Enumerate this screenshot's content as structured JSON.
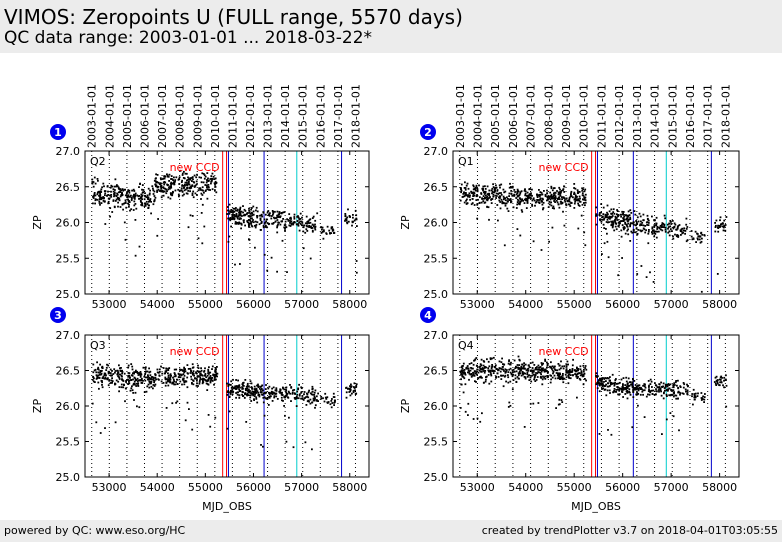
{
  "header": {
    "title": "VIMOS: Zeropoints U (FULL range, 5570 days)",
    "subtitle": "QC data range: 2003-01-01 ... 2018-03-22*"
  },
  "footer": {
    "left": "powered by QC: www.eso.org/HC",
    "right": "created by trendPlotter v3.7 on 2018-04-01T03:05:55"
  },
  "colors": {
    "background": "#ffffff",
    "band": "#ececec",
    "points": "#000000",
    "new_ccd": "#ff0000",
    "blue_line": "#0000cc",
    "cyan_line": "#00cccc",
    "badge": "#0000ee"
  },
  "chart_data": [
    {
      "type": "scatter",
      "badge": "1",
      "panel_label": "Q2",
      "annotation": "new CCD",
      "xlabel": "",
      "ylabel": "ZP",
      "xlim": [
        52500,
        58400
      ],
      "ylim": [
        25.0,
        27.0
      ],
      "xticks": [
        53000,
        54000,
        55000,
        56000,
        57000,
        58000
      ],
      "yticks": [
        25.0,
        25.5,
        26.0,
        26.5,
        27.0
      ],
      "segments": [
        {
          "x": [
            52650,
            53950
          ],
          "base": 26.42,
          "slope": -8e-05,
          "spread": 0.1,
          "count": 260
        },
        {
          "x": [
            53950,
            55250
          ],
          "base": 26.52,
          "slope": 2e-05,
          "spread": 0.1,
          "count": 260
        },
        {
          "x": [
            55450,
            56300
          ],
          "base": 26.12,
          "slope": -0.00012,
          "spread": 0.09,
          "count": 180
        },
        {
          "x": [
            56300,
            57350
          ],
          "base": 26.05,
          "slope": -8e-05,
          "spread": 0.08,
          "count": 150
        },
        {
          "x": [
            57400,
            57700
          ],
          "base": 25.88,
          "slope": 0.0,
          "spread": 0.05,
          "count": 25
        },
        {
          "x": [
            57900,
            58150
          ],
          "base": 26.05,
          "slope": 0.0,
          "spread": 0.07,
          "count": 30
        }
      ]
    },
    {
      "type": "scatter",
      "badge": "2",
      "panel_label": "Q1",
      "annotation": "new CCD",
      "xlabel": "",
      "ylabel": "ZP",
      "xlim": [
        52500,
        58400
      ],
      "ylim": [
        25.0,
        27.0
      ],
      "xticks": [
        53000,
        54000,
        55000,
        56000,
        57000,
        58000
      ],
      "yticks": [
        25.0,
        25.5,
        26.0,
        26.5,
        27.0
      ],
      "segments": [
        {
          "x": [
            52650,
            53950
          ],
          "base": 26.42,
          "slope": -6e-05,
          "spread": 0.1,
          "count": 260
        },
        {
          "x": [
            53950,
            55250
          ],
          "base": 26.35,
          "slope": 0.0,
          "spread": 0.09,
          "count": 260
        },
        {
          "x": [
            55450,
            56300
          ],
          "base": 26.1,
          "slope": -0.00015,
          "spread": 0.09,
          "count": 180
        },
        {
          "x": [
            56300,
            57350
          ],
          "base": 25.98,
          "slope": -0.0001,
          "spread": 0.08,
          "count": 150
        },
        {
          "x": [
            57400,
            57700
          ],
          "base": 25.8,
          "slope": 0.0,
          "spread": 0.06,
          "count": 25
        },
        {
          "x": [
            57900,
            58150
          ],
          "base": 25.98,
          "slope": 0.0,
          "spread": 0.07,
          "count": 30
        }
      ]
    },
    {
      "type": "scatter",
      "badge": "3",
      "panel_label": "Q3",
      "annotation": "new CCD",
      "xlabel": "MJD_OBS",
      "ylabel": "ZP",
      "xlim": [
        52500,
        58400
      ],
      "ylim": [
        25.0,
        27.0
      ],
      "xticks": [
        53000,
        54000,
        55000,
        56000,
        57000,
        58000
      ],
      "yticks": [
        25.0,
        25.5,
        26.0,
        26.5,
        27.0
      ],
      "segments": [
        {
          "x": [
            52650,
            53950
          ],
          "base": 26.42,
          "slope": -4e-05,
          "spread": 0.1,
          "count": 260
        },
        {
          "x": [
            53950,
            55250
          ],
          "base": 26.42,
          "slope": 0.0,
          "spread": 0.09,
          "count": 260
        },
        {
          "x": [
            55450,
            56300
          ],
          "base": 26.25,
          "slope": -0.0001,
          "spread": 0.08,
          "count": 180
        },
        {
          "x": [
            56300,
            57350
          ],
          "base": 26.18,
          "slope": -4e-05,
          "spread": 0.08,
          "count": 150
        },
        {
          "x": [
            57400,
            57700
          ],
          "base": 26.08,
          "slope": 0.0,
          "spread": 0.06,
          "count": 25
        },
        {
          "x": [
            57900,
            58150
          ],
          "base": 26.22,
          "slope": 0.0,
          "spread": 0.06,
          "count": 30
        }
      ]
    },
    {
      "type": "scatter",
      "badge": "4",
      "panel_label": "Q4",
      "annotation": "new CCD",
      "xlabel": "MJD_OBS",
      "ylabel": "ZP",
      "xlim": [
        52500,
        58400
      ],
      "ylim": [
        25.0,
        27.0
      ],
      "xticks": [
        53000,
        54000,
        55000,
        56000,
        57000,
        58000
      ],
      "yticks": [
        25.0,
        25.5,
        26.0,
        26.5,
        27.0
      ],
      "segments": [
        {
          "x": [
            52650,
            53950
          ],
          "base": 26.48,
          "slope": 2e-05,
          "spread": 0.1,
          "count": 260
        },
        {
          "x": [
            53950,
            55250
          ],
          "base": 26.48,
          "slope": 0.0,
          "spread": 0.09,
          "count": 260
        },
        {
          "x": [
            55450,
            56300
          ],
          "base": 26.32,
          "slope": -8e-05,
          "spread": 0.08,
          "count": 180
        },
        {
          "x": [
            56300,
            57350
          ],
          "base": 26.25,
          "slope": -4e-05,
          "spread": 0.08,
          "count": 150
        },
        {
          "x": [
            57400,
            57700
          ],
          "base": 26.12,
          "slope": 0.0,
          "spread": 0.06,
          "count": 25
        },
        {
          "x": [
            57900,
            58150
          ],
          "base": 26.35,
          "slope": 0.0,
          "spread": 0.06,
          "count": 30
        }
      ]
    }
  ],
  "year_axis": {
    "labels": [
      "2003-01-01",
      "2004-01-01",
      "2005-01-01",
      "2006-01-01",
      "2007-01-01",
      "2008-01-01",
      "2009-01-01",
      "2010-01-01",
      "2011-01-01",
      "2012-01-01",
      "2013-01-01",
      "2014-01-01",
      "2015-01-01",
      "2016-01-01",
      "2017-01-01",
      "2018-01-01"
    ],
    "mjd": [
      52640,
      53005,
      53371,
      53736,
      54101,
      54466,
      54832,
      55197,
      55562,
      55927,
      56293,
      56658,
      57023,
      57388,
      57754,
      58119
    ]
  },
  "event_lines": {
    "new_ccd": [
      55360,
      55440
    ],
    "blue": [
      55480,
      56220,
      57830
    ],
    "cyan": [
      56900
    ]
  }
}
